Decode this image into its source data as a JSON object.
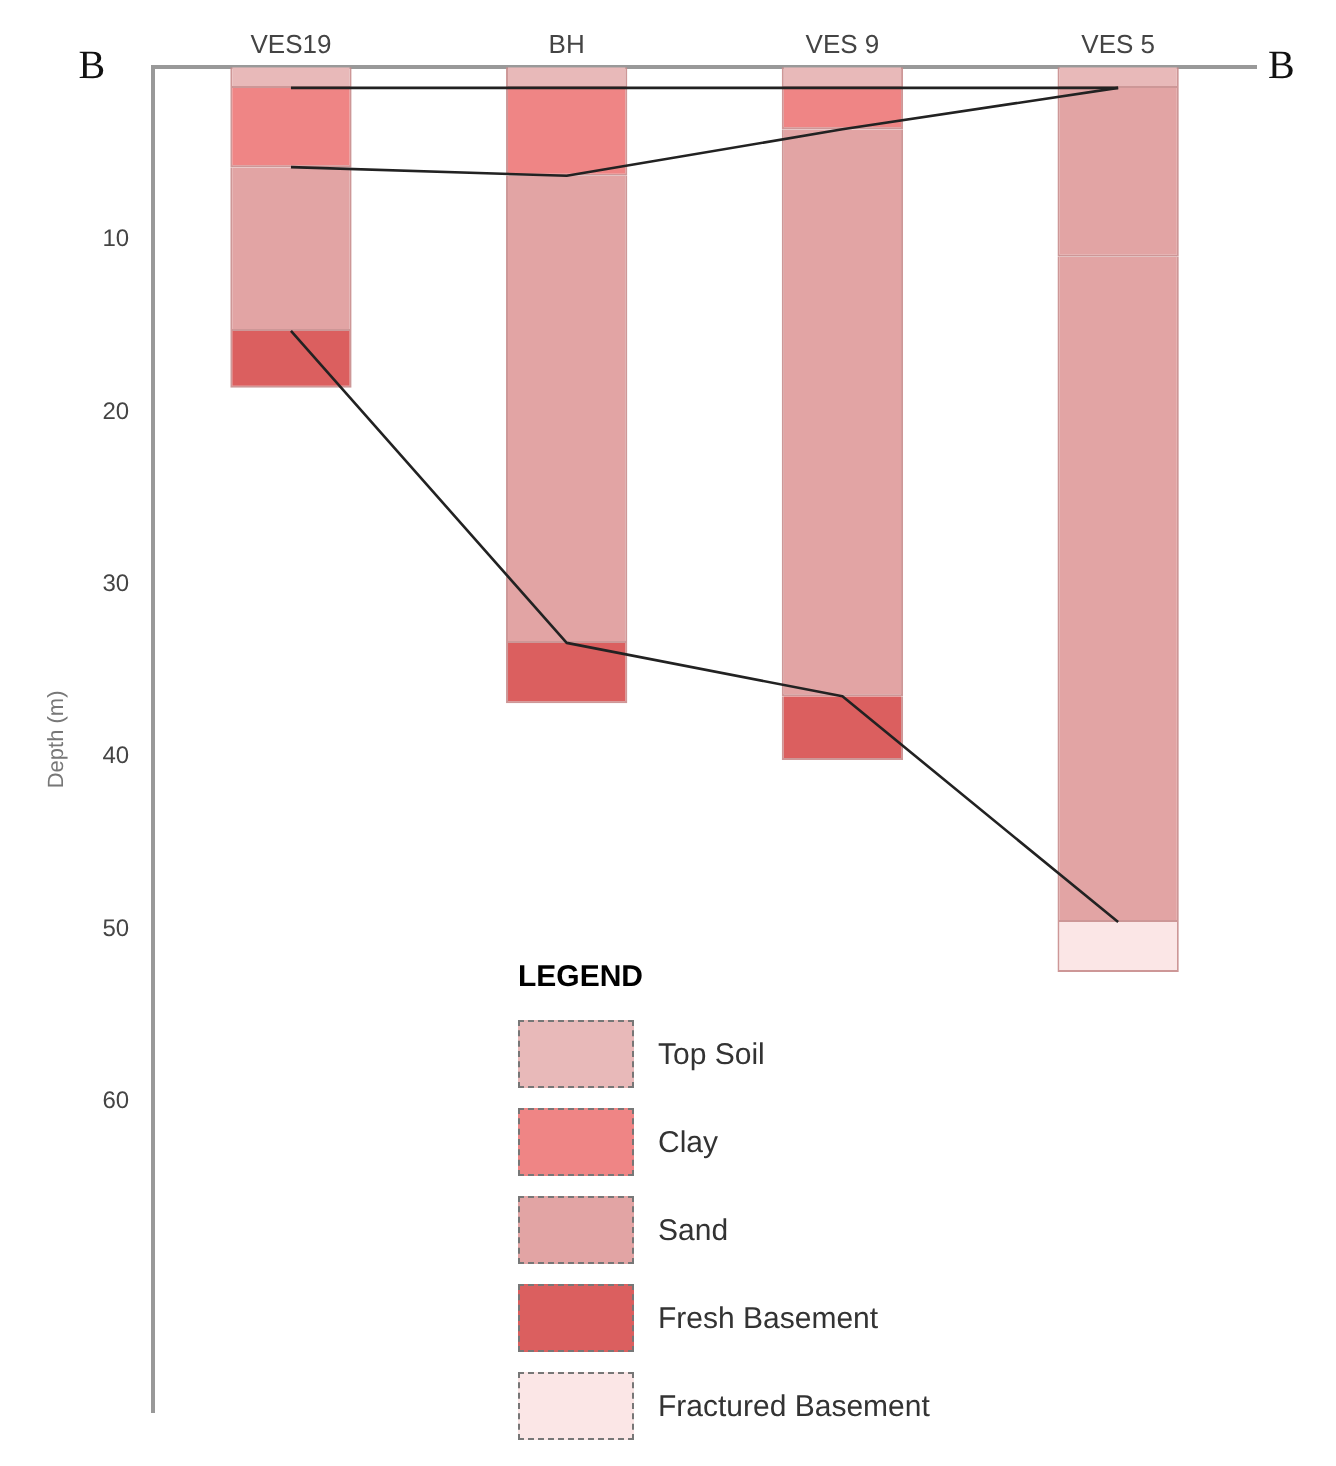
{
  "chart_data": {
    "type": "bar",
    "stacked": true,
    "ylabel": "Depth (m)",
    "legend_title": "LEGEND",
    "legend": "bottom",
    "grid": false,
    "categories": [
      "VES19",
      "BH",
      "VES 9",
      "VES 5"
    ],
    "ylim": [
      78,
      0
    ],
    "yticks": [
      10,
      20,
      30,
      40,
      50,
      60
    ],
    "annotations": [
      "B",
      "B"
    ],
    "series": [
      {
        "name": "Top Soil",
        "color": "#e8b9b9",
        "values": [
          1.2,
          1.2,
          1.2,
          1.2
        ]
      },
      {
        "name": "Clay",
        "color": "#ef8585",
        "values": [
          4.6,
          5.1,
          2.4,
          null
        ]
      },
      {
        "name": "Sand",
        "color": "#e2a4a4",
        "values": [
          9.5,
          27.1,
          32.9,
          9.8
        ]
      },
      {
        "color": "#e2a4a4",
        "values": [
          null,
          null,
          null,
          38.6
        ]
      },
      {
        "name": "Fresh Basement",
        "color": "#db5f5f",
        "values": [
          3.3,
          3.5,
          3.7,
          null
        ]
      },
      {
        "name": "Fractured Basement",
        "color": "#fbe6e6",
        "values": [
          null,
          null,
          null,
          2.9
        ]
      },
      {
        "type": "line",
        "color": "#222222",
        "values": [
          1.2,
          1.2,
          1.2,
          1.2
        ]
      },
      {
        "type": "line",
        "color": "#222222",
        "values": [
          5.8,
          6.3,
          3.6,
          1.2
        ]
      },
      {
        "type": "line",
        "color": "#222222",
        "values": [
          15.3,
          33.4,
          36.5,
          49.6
        ]
      }
    ]
  }
}
